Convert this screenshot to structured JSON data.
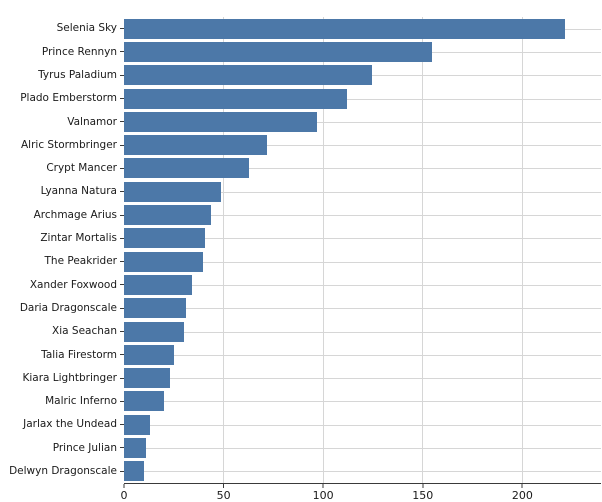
{
  "figure": {
    "background": "#ffffff",
    "title": ""
  },
  "chart_data": {
    "type": "bar",
    "orientation": "horizontal",
    "title": "",
    "xlabel": "",
    "ylabel": "",
    "categories": [
      "Selenia Sky",
      "Prince Rennyn",
      "Tyrus Paladium",
      "Plado Emberstorm",
      "Valnamor",
      "Alric Stormbringer",
      "Crypt Mancer",
      "Lyanna Natura",
      "Archmage Arius",
      "Zintar Mortalis",
      "The Peakrider",
      "Xander Foxwood",
      "Daria Dragonscale",
      "Xia Seachan",
      "Talia Firestorm",
      "Kiara Lightbringer",
      "Malric Inferno",
      "Jarlax the Undead",
      "Prince Julian",
      "Delwyn Dragonscale"
    ],
    "values": [
      222,
      155,
      125,
      112,
      97,
      72,
      63,
      49,
      44,
      41,
      40,
      34,
      31,
      30,
      25,
      23,
      20,
      13,
      11,
      10
    ],
    "xlim": [
      0,
      240
    ],
    "x_ticks": [
      0,
      50,
      100,
      150,
      200
    ],
    "grid": "both",
    "legend": "none",
    "bar_color": "#4c78a8",
    "grid_color": "#d6d6d6",
    "axis_color": "#3a3a3a",
    "tick_label_color": "#1a1a1a"
  }
}
